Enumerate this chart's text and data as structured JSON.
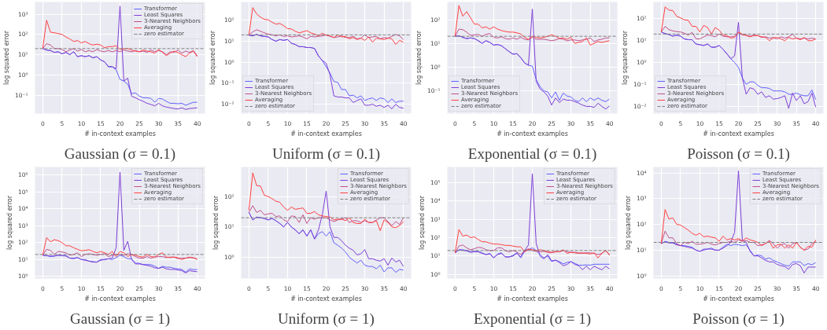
{
  "chart_data": [
    {
      "type": "line",
      "title": "Gaussian (σ = 0.1)",
      "xlabel": "# in-context examples",
      "ylabel": "log squared error",
      "log": true,
      "grid": true,
      "legend": "top right",
      "xlim": [
        -2,
        42
      ],
      "xticks": [
        0,
        5,
        10,
        15,
        20,
        25,
        30,
        35,
        40
      ],
      "ylim": [
        0.0125,
        4000
      ],
      "yticks": [
        {
          "value": 0.1,
          "label": "10⁻¹"
        },
        {
          "value": 1,
          "label": "10⁰"
        },
        {
          "value": 10,
          "label": "10¹"
        },
        {
          "value": 100,
          "label": "10²"
        },
        {
          "value": 1000,
          "label": "10³"
        }
      ],
      "x": [
        0,
        1,
        2,
        3,
        4,
        5,
        6,
        7,
        8,
        9,
        10,
        11,
        12,
        13,
        14,
        15,
        16,
        17,
        18,
        19,
        20,
        21,
        22,
        23,
        24,
        25,
        26,
        27,
        28,
        29,
        30,
        31,
        32,
        33,
        34,
        35,
        36,
        37,
        38,
        39,
        40
      ],
      "ref_lines": [
        {
          "axis": "y",
          "value": 20,
          "label": "zero estimator",
          "color": "#808080",
          "line_style": "dashed"
        }
      ],
      "series": [
        {
          "name": "Transformer",
          "color": "#6060ff",
          "values": [
            20,
            17,
            16,
            13,
            14,
            11,
            13,
            10,
            14,
            8,
            9,
            8,
            9,
            7,
            8,
            5.5,
            4.5,
            2.5,
            2.5,
            1.8,
            0.6,
            0.5,
            0.35,
            0.12,
            0.13,
            0.09,
            0.075,
            0.075,
            0.07,
            0.045,
            0.07,
            0.065,
            0.05,
            0.04,
            0.04,
            0.038,
            0.04,
            0.032,
            0.038,
            0.045,
            0.045
          ]
        },
        {
          "name": "Least Squares",
          "color": "#7c3fd6",
          "values": [
            20,
            17,
            16,
            13,
            14,
            11,
            13,
            10,
            14,
            8,
            9,
            8,
            9,
            7,
            8,
            5.5,
            4.5,
            2.6,
            2.6,
            2,
            2500,
            0.5,
            0.7,
            0.09,
            0.075,
            0.06,
            0.05,
            0.04,
            0.035,
            0.03,
            0.04,
            0.03,
            0.026,
            0.024,
            0.022,
            0.021,
            0.024,
            0.02,
            0.022,
            0.023,
            0.024
          ]
        },
        {
          "name": "3-Nearest Neighbors",
          "color": "#c0508c",
          "values": [
            20,
            35,
            30,
            20,
            20,
            18,
            14,
            17,
            20,
            15,
            18,
            14,
            16,
            14,
            18,
            15,
            14,
            16,
            14,
            16,
            14,
            17,
            15,
            14,
            16,
            14,
            15,
            13,
            17,
            14,
            16,
            14,
            10,
            14,
            13,
            17,
            12,
            15,
            13,
            16,
            9
          ]
        },
        {
          "name": "Averaging",
          "color": "#ff4040",
          "values": [
            20,
            500,
            130,
            120,
            110,
            100,
            75,
            60,
            45,
            50,
            38,
            45,
            35,
            30,
            33,
            30,
            22,
            25,
            25,
            28,
            18,
            20,
            20,
            17,
            15,
            14,
            17,
            15,
            14,
            12,
            18,
            13,
            9,
            12,
            15,
            13,
            10,
            8,
            12,
            15,
            8
          ]
        }
      ]
    },
    {
      "type": "line",
      "title": "Uniform (σ = 0.1)",
      "xlabel": "# in-context examples",
      "ylabel": "log squared error",
      "log": true,
      "grid": true,
      "legend": "bottom left",
      "xlim": [
        -2,
        42
      ],
      "xticks": [
        0,
        5,
        10,
        15,
        20,
        25,
        30,
        35,
        40
      ],
      "ylim": [
        0.0036,
        740
      ],
      "yticks": [
        {
          "value": 0.01,
          "label": "10⁻²"
        },
        {
          "value": 0.1,
          "label": "10⁻¹"
        },
        {
          "value": 1,
          "label": "10⁰"
        },
        {
          "value": 10,
          "label": "10¹"
        },
        {
          "value": 100,
          "label": "10²"
        }
      ],
      "x": [
        0,
        1,
        2,
        3,
        4,
        5,
        6,
        7,
        8,
        9,
        10,
        11,
        12,
        13,
        14,
        15,
        16,
        17,
        18,
        19,
        20,
        21,
        22,
        23,
        24,
        25,
        26,
        27,
        28,
        29,
        30,
        31,
        32,
        33,
        34,
        35,
        36,
        37,
        38,
        39,
        40
      ],
      "ref_lines": [
        {
          "axis": "y",
          "value": 20,
          "label": "zero estimator",
          "color": "#808080",
          "line_style": "dashed"
        }
      ],
      "series": [
        {
          "name": "Transformer",
          "color": "#6060ff",
          "values": [
            19,
            18,
            21,
            18,
            17,
            16,
            12,
            10,
            12,
            11,
            12,
            8,
            7,
            5.5,
            5.5,
            5,
            5,
            4.5,
            2,
            1.2,
            0.6,
            0.3,
            0.12,
            0.11,
            0.05,
            0.05,
            0.025,
            0.027,
            0.02,
            0.025,
            0.015,
            0.018,
            0.02,
            0.015,
            0.02,
            0.018,
            0.012,
            0.018,
            0.012,
            0.014,
            0.014
          ]
        },
        {
          "name": "Least Squares",
          "color": "#7c3fd6",
          "values": [
            19,
            18,
            21,
            18,
            17,
            16,
            12,
            10,
            12,
            11,
            12,
            8,
            7,
            5.5,
            5.5,
            5,
            5,
            4.5,
            2,
            1.2,
            0.9,
            0.25,
            0.025,
            0.022,
            0.022,
            0.02,
            0.02,
            0.012,
            0.015,
            0.018,
            0.009,
            0.009,
            0.01,
            0.008,
            0.009,
            0.007,
            0.009,
            0.006,
            0.01,
            0.007,
            0.0065
          ]
        },
        {
          "name": "3-Nearest Neighbors",
          "color": "#c0508c",
          "values": [
            20,
            28,
            35,
            30,
            25,
            22,
            20,
            18,
            20,
            17,
            18,
            16,
            17,
            18,
            16,
            13,
            17,
            16,
            17,
            18,
            20,
            17,
            15,
            16,
            18,
            15,
            15,
            17,
            13,
            14,
            20,
            15,
            16,
            17,
            13,
            15,
            14,
            17,
            21,
            18,
            12
          ]
        },
        {
          "name": "Averaging",
          "color": "#ff4040",
          "values": [
            20,
            400,
            200,
            140,
            110,
            105,
            80,
            65,
            70,
            55,
            40,
            38,
            30,
            25,
            28,
            32,
            25,
            22,
            18,
            24,
            19,
            18,
            15,
            20,
            16,
            17,
            13,
            15,
            12,
            14,
            11,
            16,
            9,
            14,
            13,
            12,
            14,
            13,
            7,
            11,
            9
          ]
        }
      ]
    },
    {
      "type": "line",
      "title": "Exponential (σ = 0.1)",
      "xlabel": "# in-context examples",
      "ylabel": "log squared error",
      "log": true,
      "grid": true,
      "legend": "bottom left",
      "xlim": [
        -2,
        42
      ],
      "xticks": [
        0,
        5,
        10,
        15,
        20,
        25,
        30,
        35,
        40
      ],
      "ylim": [
        0.011,
        560
      ],
      "yticks": [
        {
          "value": 0.1,
          "label": "10⁻¹"
        },
        {
          "value": 1,
          "label": "10⁰"
        },
        {
          "value": 10,
          "label": "10¹"
        },
        {
          "value": 100,
          "label": "10²"
        }
      ],
      "x": [
        0,
        1,
        2,
        3,
        4,
        5,
        6,
        7,
        8,
        9,
        10,
        11,
        12,
        13,
        14,
        15,
        16,
        17,
        18,
        19,
        20,
        21,
        22,
        23,
        24,
        25,
        26,
        27,
        28,
        29,
        30,
        31,
        32,
        33,
        34,
        35,
        36,
        37,
        38,
        39,
        40
      ],
      "ref_lines": [
        {
          "axis": "y",
          "value": 20,
          "label": "zero estimator",
          "color": "#808080",
          "line_style": "dashed"
        }
      ],
      "series": [
        {
          "name": "Transformer",
          "color": "#6060ff",
          "values": [
            20,
            21,
            18,
            16,
            17,
            16,
            13,
            10,
            13,
            11,
            8.5,
            9,
            8,
            6,
            4.5,
            3.5,
            3.7,
            2.5,
            1.5,
            1.2,
            1.1,
            0.3,
            0.15,
            0.1,
            0.09,
            0.05,
            0.09,
            0.04,
            0.08,
            0.06,
            0.055,
            0.04,
            0.035,
            0.05,
            0.035,
            0.05,
            0.04,
            0.05,
            0.04,
            0.035,
            0.045
          ]
        },
        {
          "name": "Least Squares",
          "color": "#7c3fd6",
          "values": [
            20,
            21,
            18,
            16,
            17,
            16,
            13,
            10,
            13,
            11,
            8.5,
            9,
            8,
            6,
            4.5,
            3.5,
            3.7,
            2.5,
            1.5,
            1.2,
            280,
            0.25,
            0.12,
            0.09,
            0.06,
            0.025,
            0.05,
            0.032,
            0.045,
            0.04,
            0.04,
            0.035,
            0.03,
            0.025,
            0.022,
            0.022,
            0.02,
            0.03,
            0.022,
            0.017,
            0.023
          ]
        },
        {
          "name": "3-Nearest Neighbors",
          "color": "#c0508c",
          "values": [
            20,
            40,
            38,
            30,
            22,
            23,
            24,
            20,
            24,
            26,
            18,
            17,
            19,
            16,
            15,
            17,
            15,
            18,
            15,
            14,
            18,
            15,
            15,
            15,
            14,
            13,
            14,
            16,
            15,
            13,
            14,
            14,
            13,
            14,
            15,
            17,
            12,
            14,
            15,
            17,
            17
          ]
        },
        {
          "name": "Averaging",
          "color": "#ff4040",
          "values": [
            20,
            400,
            140,
            220,
            120,
            65,
            65,
            45,
            50,
            40,
            50,
            40,
            35,
            32,
            30,
            30,
            28,
            25,
            18,
            15,
            20,
            18,
            17,
            18,
            20,
            23,
            20,
            16,
            17,
            15,
            18,
            10,
            11,
            12,
            17,
            8.5,
            10,
            12,
            11,
            12,
            13
          ]
        }
      ]
    },
    {
      "type": "line",
      "title": "Poisson (σ = 0.1)",
      "xlabel": "# in-context examples",
      "ylabel": "log squared error",
      "log": true,
      "grid": true,
      "legend": "bottom left",
      "xlim": [
        -2,
        42
      ],
      "xticks": [
        0,
        5,
        10,
        15,
        20,
        25,
        30,
        35,
        40
      ],
      "ylim": [
        0.0046,
        590
      ],
      "yticks": [
        {
          "value": 0.01,
          "label": "10⁻²"
        },
        {
          "value": 0.1,
          "label": "10⁻¹"
        },
        {
          "value": 1,
          "label": "10⁰"
        },
        {
          "value": 10,
          "label": "10¹"
        },
        {
          "value": 100,
          "label": "10²"
        }
      ],
      "x": [
        0,
        1,
        2,
        3,
        4,
        5,
        6,
        7,
        8,
        9,
        10,
        11,
        12,
        13,
        14,
        15,
        16,
        17,
        18,
        19,
        20,
        21,
        22,
        23,
        24,
        25,
        26,
        27,
        28,
        29,
        30,
        31,
        32,
        33,
        34,
        35,
        36,
        37,
        38,
        39,
        40
      ],
      "ref_lines": [
        {
          "axis": "y",
          "value": 20,
          "label": "zero estimator",
          "color": "#808080",
          "line_style": "dashed"
        }
      ],
      "series": [
        {
          "name": "Transformer",
          "color": "#6060ff",
          "values": [
            25,
            21,
            19,
            16,
            18,
            16,
            12,
            11,
            11,
            7,
            6.5,
            6,
            7,
            5,
            5,
            6,
            4,
            2.5,
            1.5,
            1,
            0.6,
            0.2,
            0.1,
            0.13,
            0.13,
            0.09,
            0.07,
            0.07,
            0.065,
            0.05,
            0.05,
            0.05,
            0.045,
            0.035,
            0.035,
            0.04,
            0.033,
            0.03,
            0.03,
            0.055,
            0.02
          ]
        },
        {
          "name": "Least Squares",
          "color": "#7c3fd6",
          "values": [
            25,
            21,
            19,
            16,
            18,
            16,
            12,
            11,
            11,
            7,
            6.5,
            6,
            7,
            5,
            5,
            6,
            4,
            2.5,
            1.5,
            2,
            70,
            0.2,
            0.035,
            0.07,
            0.06,
            0.035,
            0.045,
            0.025,
            0.03,
            0.021,
            0.022,
            0.025,
            0.03,
            0.008,
            0.04,
            0.018,
            0.03,
            0.013,
            0.016,
            0.04,
            0.009
          ]
        },
        {
          "name": "3-Nearest Neighbors",
          "color": "#c0508c",
          "values": [
            25,
            45,
            32,
            28,
            26,
            25,
            22,
            18,
            24,
            12,
            12,
            15,
            18,
            17,
            15,
            20,
            16,
            15,
            15,
            16,
            23,
            18,
            18,
            16,
            18,
            17,
            14,
            15,
            13,
            14,
            12,
            15,
            13,
            15,
            20,
            13,
            12,
            13,
            12,
            13,
            12
          ]
        },
        {
          "name": "Averaging",
          "color": "#ff4040",
          "values": [
            25,
            350,
            250,
            240,
            130,
            110,
            90,
            85,
            45,
            45,
            25,
            50,
            40,
            20,
            40,
            30,
            18,
            17,
            13,
            14,
            25,
            20,
            17,
            15,
            17,
            17,
            15,
            14,
            10,
            13,
            14,
            12,
            10,
            14,
            12,
            13,
            11,
            14,
            10,
            10,
            12
          ]
        }
      ]
    },
    {
      "type": "line",
      "title": "Gaussian (σ = 1)",
      "xlabel": "# in-context examples",
      "ylabel": "log squared error",
      "log": true,
      "grid": true,
      "legend": "top right",
      "xlim": [
        -2,
        42
      ],
      "xticks": [
        0,
        5,
        10,
        15,
        20,
        25,
        30,
        35,
        40
      ],
      "ylim": [
        0.75,
        3000000
      ],
      "yticks": [
        {
          "value": 1,
          "label": "10⁰"
        },
        {
          "value": 10,
          "label": "10¹"
        },
        {
          "value": 100,
          "label": "10²"
        },
        {
          "value": 1000,
          "label": "10³"
        },
        {
          "value": 10000,
          "label": "10⁴"
        },
        {
          "value": 100000,
          "label": "10⁵"
        },
        {
          "value": 1000000,
          "label": "10⁶"
        }
      ],
      "x": [
        0,
        1,
        2,
        3,
        4,
        5,
        6,
        7,
        8,
        9,
        10,
        11,
        12,
        13,
        14,
        15,
        16,
        17,
        18,
        19,
        20,
        21,
        22,
        23,
        24,
        25,
        26,
        27,
        28,
        29,
        30,
        31,
        32,
        33,
        34,
        35,
        36,
        37,
        38,
        39,
        40
      ],
      "ref_lines": [
        {
          "axis": "y",
          "value": 20,
          "label": "zero estimator",
          "color": "#808080",
          "line_style": "dashed"
        }
      ],
      "series": [
        {
          "name": "Transformer",
          "color": "#6060ff",
          "values": [
            18,
            17,
            15,
            16,
            18,
            17,
            18,
            12,
            11,
            13,
            10,
            10,
            8,
            7.5,
            7,
            10,
            10,
            11,
            10,
            13,
            18,
            15,
            11,
            11,
            6,
            6,
            5,
            5,
            5,
            4,
            3,
            4,
            3.5,
            3.5,
            3,
            2.8,
            2.6,
            1.8,
            2.8,
            2.5,
            2.6
          ]
        },
        {
          "name": "Least Squares",
          "color": "#7c3fd6",
          "values": [
            18,
            17,
            16,
            16,
            18,
            17,
            16,
            12,
            12,
            13,
            10,
            9,
            8,
            7,
            7,
            9,
            10,
            11,
            12,
            50,
            1500000,
            35,
            120,
            10,
            5.5,
            5.5,
            5,
            4.5,
            4,
            3.2,
            3,
            3.5,
            2.8,
            2.6,
            2.6,
            2.4,
            2.2,
            1.6,
            2.2,
            2,
            1.9
          ]
        },
        {
          "name": "3-Nearest Neighbors",
          "color": "#c0508c",
          "values": [
            18,
            40,
            35,
            20,
            30,
            28,
            25,
            18,
            20,
            25,
            15,
            20,
            22,
            20,
            18,
            20,
            22,
            15,
            18,
            20,
            20,
            18,
            22,
            20,
            15,
            12,
            12,
            15,
            12,
            14,
            15,
            15,
            13,
            14,
            14,
            11,
            12,
            12,
            13,
            13,
            10
          ]
        },
        {
          "name": "Averaging",
          "color": "#ff4040",
          "values": [
            18,
            200,
            110,
            150,
            130,
            100,
            65,
            65,
            50,
            40,
            33,
            35,
            38,
            30,
            25,
            30,
            25,
            20,
            30,
            15,
            30,
            25,
            15,
            20,
            18,
            15,
            14,
            20,
            15,
            14,
            20,
            25,
            14,
            13,
            14,
            13,
            10,
            12,
            14,
            12,
            11
          ]
        }
      ]
    },
    {
      "type": "line",
      "title": "Uniform (σ = 1)",
      "xlabel": "# in-context examples",
      "ylabel": "log squared error",
      "log": true,
      "grid": true,
      "legend": "top right",
      "xlim": [
        -2,
        42
      ],
      "xticks": [
        0,
        5,
        10,
        15,
        20,
        25,
        30,
        35,
        40
      ],
      "ylim": [
        0.2,
        940
      ],
      "yticks": [
        {
          "value": 1,
          "label": "10⁰"
        },
        {
          "value": 10,
          "label": "10¹"
        },
        {
          "value": 100,
          "label": "10²"
        }
      ],
      "x": [
        0,
        1,
        2,
        3,
        4,
        5,
        6,
        7,
        8,
        9,
        10,
        11,
        12,
        13,
        14,
        15,
        16,
        17,
        18,
        19,
        20,
        21,
        22,
        23,
        24,
        25,
        26,
        27,
        28,
        29,
        30,
        31,
        32,
        33,
        34,
        35,
        36,
        37,
        38,
        39,
        40
      ],
      "ref_lines": [
        {
          "axis": "y",
          "value": 20,
          "label": "zero estimator",
          "color": "#808080",
          "line_style": "dashed"
        }
      ],
      "series": [
        {
          "name": "Transformer",
          "color": "#6060ff",
          "values": [
            30,
            17,
            21,
            20,
            19,
            17,
            19,
            16,
            13,
            10,
            14,
            10,
            8,
            6,
            8,
            5,
            8,
            4,
            6,
            7,
            5,
            7,
            3,
            2.5,
            2,
            1.5,
            1,
            0.8,
            0.65,
            0.8,
            0.55,
            0.5,
            0.5,
            0.42,
            0.55,
            0.33,
            0.45,
            0.45,
            0.32,
            0.4,
            0.38
          ]
        },
        {
          "name": "Least Squares",
          "color": "#7c3fd6",
          "values": [
            30,
            17,
            21,
            20,
            19,
            17,
            19,
            16,
            13,
            10,
            14,
            10,
            8,
            6,
            8,
            5,
            8,
            4,
            8,
            25,
            150,
            10,
            4.5,
            4.5,
            3.5,
            2.5,
            2,
            1.7,
            1.2,
            1.3,
            1.8,
            0.9,
            0.9,
            0.8,
            0.75,
            0.9,
            0.55,
            0.95,
            0.7,
            0.8,
            0.5
          ]
        },
        {
          "name": "3-Nearest Neighbors",
          "color": "#c0508c",
          "values": [
            30,
            50,
            30,
            35,
            25,
            27,
            28,
            22,
            23,
            17,
            15,
            23,
            22,
            14,
            25,
            13,
            20,
            18,
            20,
            20,
            20,
            17,
            15,
            17,
            18,
            20,
            14,
            16,
            16,
            14,
            16,
            14,
            14,
            17,
            20,
            20,
            15,
            11,
            15,
            12,
            20
          ]
        },
        {
          "name": "Averaging",
          "color": "#ff4040",
          "values": [
            35,
            600,
            230,
            220,
            110,
            100,
            85,
            70,
            65,
            45,
            35,
            45,
            38,
            40,
            42,
            28,
            28,
            32,
            25,
            23,
            22,
            21,
            17,
            18,
            18,
            16,
            20,
            14,
            13,
            13,
            18,
            14,
            14,
            16,
            7.5,
            17,
            14,
            10,
            9.5,
            11,
            15
          ]
        }
      ]
    },
    {
      "type": "line",
      "title": "Exponential (σ = 1)",
      "xlabel": "# in-context examples",
      "ylabel": "log squared error",
      "log": true,
      "grid": true,
      "legend": "top right",
      "xlim": [
        -2,
        42
      ],
      "xticks": [
        0,
        5,
        10,
        15,
        20,
        25,
        30,
        35,
        40
      ],
      "ylim": [
        0.6,
        700000
      ],
      "yticks": [
        {
          "value": 1,
          "label": "10⁰"
        },
        {
          "value": 10,
          "label": "10¹"
        },
        {
          "value": 100,
          "label": "10²"
        },
        {
          "value": 1000,
          "label": "10³"
        },
        {
          "value": 10000,
          "label": "10⁴"
        },
        {
          "value": 100000,
          "label": "10⁵"
        }
      ],
      "x": [
        0,
        1,
        2,
        3,
        4,
        5,
        6,
        7,
        8,
        9,
        10,
        11,
        12,
        13,
        14,
        15,
        16,
        17,
        18,
        19,
        20,
        21,
        22,
        23,
        24,
        25,
        26,
        27,
        28,
        29,
        30,
        31,
        32,
        33,
        34,
        35,
        36,
        37,
        38,
        39,
        40
      ],
      "ref_lines": [
        {
          "axis": "y",
          "value": 20,
          "label": "zero estimator",
          "color": "#808080",
          "line_style": "dashed"
        }
      ],
      "series": [
        {
          "name": "Transformer",
          "color": "#6060ff",
          "values": [
            15,
            22,
            22,
            20,
            17,
            18,
            18,
            15,
            12,
            14,
            8,
            13,
            15,
            9,
            9,
            11,
            15,
            8,
            18,
            22,
            28,
            20,
            12,
            8,
            10,
            5,
            6,
            5,
            3.8,
            4.5,
            5,
            4,
            3.2,
            3.2,
            3.3,
            3.2,
            3.6,
            3.6,
            3.6,
            3.6,
            3.6
          ]
        },
        {
          "name": "Least Squares",
          "color": "#7c3fd6",
          "values": [
            15,
            22,
            21,
            19,
            16,
            17,
            17,
            14,
            12,
            13,
            8,
            12,
            14,
            9,
            9,
            10,
            14,
            9,
            20,
            40,
            300000,
            50,
            10,
            7,
            12,
            5.5,
            6,
            4.5,
            3,
            3.5,
            5,
            3.5,
            3,
            1.8,
            2.8,
            1.8,
            2.8,
            2.2,
            1.8,
            2.8,
            2
          ]
        },
        {
          "name": "3-Nearest Neighbors",
          "color": "#c0508c",
          "values": [
            15,
            35,
            40,
            28,
            22,
            25,
            30,
            28,
            22,
            20,
            20,
            28,
            28,
            20,
            17,
            20,
            17,
            12,
            20,
            25,
            20,
            18,
            17,
            18,
            16,
            15,
            17,
            17,
            20,
            17,
            16,
            16,
            15,
            14,
            15,
            15,
            14,
            12,
            14,
            20,
            12
          ]
        },
        {
          "name": "Averaging",
          "color": "#ff4040",
          "values": [
            15,
            280,
            120,
            140,
            100,
            110,
            80,
            60,
            60,
            50,
            45,
            45,
            42,
            38,
            38,
            35,
            32,
            32,
            17,
            23,
            22,
            20,
            22,
            20,
            17,
            16,
            18,
            17,
            22,
            14,
            16,
            15,
            14,
            15,
            14,
            13,
            15,
            8,
            14,
            20,
            11
          ]
        }
      ]
    },
    {
      "type": "line",
      "title": "Poisson (σ = 1)",
      "xlabel": "# in-context examples",
      "ylabel": "log squared error",
      "log": true,
      "grid": true,
      "legend": "top right",
      "xlim": [
        -2,
        42
      ],
      "xticks": [
        0,
        5,
        10,
        15,
        20,
        25,
        30,
        35,
        40
      ],
      "ylim": [
        0.79,
        17000
      ],
      "yticks": [
        {
          "value": 1,
          "label": "10⁰"
        },
        {
          "value": 10,
          "label": "10¹"
        },
        {
          "value": 100,
          "label": "10²"
        },
        {
          "value": 1000,
          "label": "10³"
        },
        {
          "value": 10000,
          "label": "10⁴"
        }
      ],
      "x": [
        0,
        1,
        2,
        3,
        4,
        5,
        6,
        7,
        8,
        9,
        10,
        11,
        12,
        13,
        14,
        15,
        16,
        17,
        18,
        19,
        20,
        21,
        22,
        23,
        24,
        25,
        26,
        27,
        28,
        29,
        30,
        31,
        32,
        33,
        34,
        35,
        36,
        37,
        38,
        39,
        40
      ],
      "ref_lines": [
        {
          "axis": "y",
          "value": 20,
          "label": "zero estimator",
          "color": "#808080",
          "line_style": "dashed"
        }
      ],
      "series": [
        {
          "name": "Transformer",
          "color": "#6060ff",
          "values": [
            18,
            22,
            20,
            20,
            17,
            15,
            15,
            14,
            13,
            10,
            9,
            11,
            11,
            12,
            10,
            10,
            13,
            17,
            15,
            17,
            16,
            15,
            16,
            10,
            6,
            6.5,
            6,
            4.5,
            5,
            4,
            3.5,
            3,
            2.6,
            2.4,
            3.5,
            3.5,
            3.5,
            2.5,
            3,
            2.7,
            3.3
          ]
        },
        {
          "name": "Least Squares",
          "color": "#7c3fd6",
          "values": [
            18,
            21,
            19,
            19,
            16,
            15,
            14,
            13,
            12,
            10,
            9,
            10,
            11,
            11,
            10,
            10,
            12,
            15,
            20,
            50,
            12000,
            25,
            20,
            9,
            6,
            6,
            5,
            4,
            3.5,
            3.5,
            2.8,
            2.5,
            2.3,
            1.8,
            2.8,
            3,
            2.5,
            1.3,
            2.2,
            2.2,
            2.2
          ]
        },
        {
          "name": "3-Nearest Neighbors",
          "color": "#c0508c",
          "values": [
            18,
            55,
            30,
            30,
            18,
            15,
            20,
            18,
            22,
            17,
            17,
            18,
            20,
            17,
            16,
            18,
            20,
            20,
            22,
            20,
            25,
            22,
            24,
            20,
            20,
            15,
            16,
            18,
            24,
            18,
            12,
            16,
            18,
            12,
            18,
            20,
            13,
            10,
            11,
            18,
            22
          ]
        },
        {
          "name": "Averaging",
          "color": "#ff4040",
          "values": [
            18,
            380,
            160,
            180,
            100,
            95,
            75,
            60,
            45,
            38,
            45,
            33,
            35,
            32,
            30,
            22,
            35,
            25,
            28,
            25,
            28,
            23,
            30,
            25,
            23,
            20,
            15,
            18,
            22,
            12,
            16,
            17,
            12,
            16,
            12,
            20,
            13,
            10,
            14,
            13,
            25
          ]
        }
      ]
    }
  ]
}
